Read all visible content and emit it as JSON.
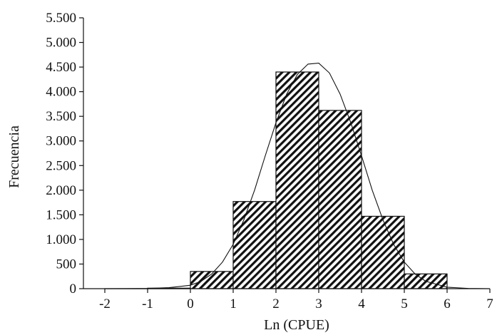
{
  "chart_data": {
    "type": "bar",
    "title": "",
    "xlabel": "Ln (CPUE)",
    "ylabel": "Frecuencia",
    "xlim": [
      -2.5,
      7
    ],
    "ylim": [
      0,
      5500
    ],
    "grid": false,
    "legend": "none",
    "x_ticks": [
      -2,
      -1,
      0,
      1,
      2,
      3,
      4,
      5,
      6,
      7
    ],
    "x_tick_labels": [
      "-2",
      "-1",
      "0",
      "1",
      "2",
      "3",
      "4",
      "5",
      "6",
      "7"
    ],
    "y_ticks": [
      0,
      500,
      1000,
      1500,
      2000,
      2500,
      3000,
      3500,
      4000,
      4500,
      5000,
      5500
    ],
    "y_tick_labels": [
      "0",
      "500",
      "1.000",
      "1.500",
      "2.000",
      "2.500",
      "3.000",
      "3.500",
      "4.000",
      "4.500",
      "5.000",
      "5.500"
    ],
    "bins": [
      {
        "x0": -2,
        "x1": -1,
        "value": 0
      },
      {
        "x0": -1,
        "x1": 0,
        "value": 10
      },
      {
        "x0": 0,
        "x1": 1,
        "value": 350
      },
      {
        "x0": 1,
        "x1": 2,
        "value": 1770
      },
      {
        "x0": 2,
        "x1": 3,
        "value": 4400
      },
      {
        "x0": 3,
        "x1": 4,
        "value": 3620
      },
      {
        "x0": 4,
        "x1": 5,
        "value": 1470
      },
      {
        "x0": 5,
        "x1": 6,
        "value": 300
      }
    ],
    "fit_curve": {
      "type": "normal",
      "x": [
        -2,
        -1.5,
        -1,
        -0.5,
        0,
        0.25,
        0.5,
        0.75,
        1,
        1.25,
        1.5,
        1.75,
        2,
        2.25,
        2.5,
        2.75,
        3,
        3.25,
        3.5,
        3.75,
        4,
        4.25,
        4.5,
        4.75,
        5,
        5.25,
        5.5,
        6,
        6.5,
        7
      ],
      "y": [
        0,
        1,
        5,
        20,
        70,
        150,
        300,
        540,
        900,
        1400,
        2000,
        2700,
        3370,
        3950,
        4350,
        4560,
        4580,
        4380,
        3950,
        3370,
        2700,
        2000,
        1400,
        900,
        540,
        300,
        150,
        30,
        5,
        0
      ]
    }
  }
}
